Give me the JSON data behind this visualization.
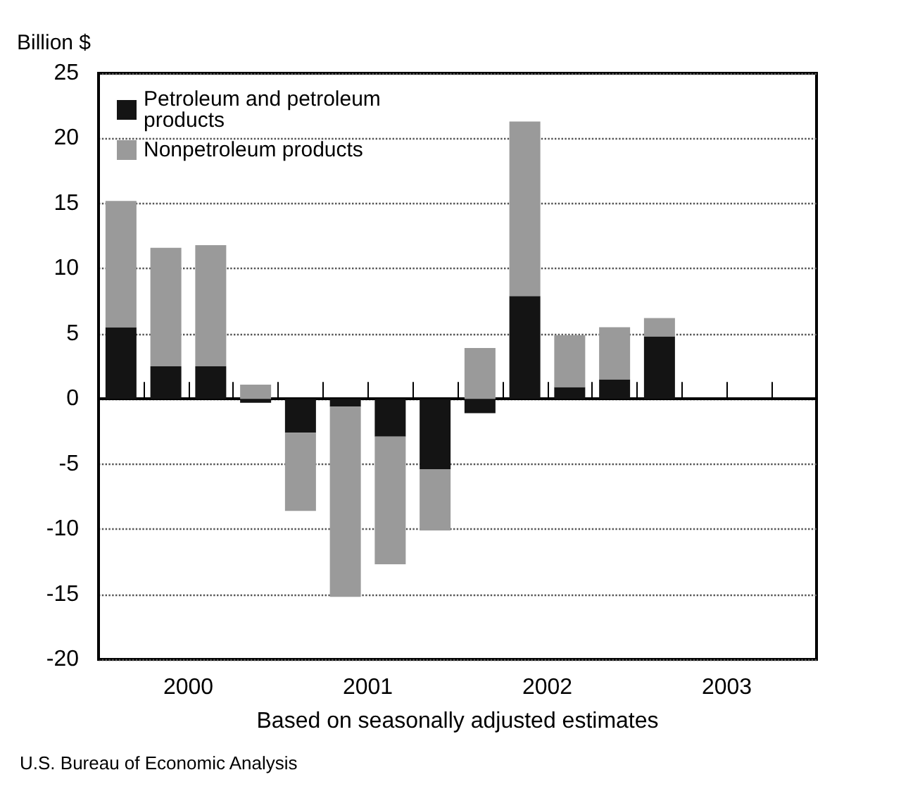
{
  "chart_data": {
    "type": "bar",
    "stacked": true,
    "ylabel": "Billion $",
    "xlabel": "Based on seasonally adjusted estimates",
    "annotations": [
      "U.S. Bureau of Economic Analysis"
    ],
    "x": [
      2000.125,
      2000.375,
      2000.625,
      2000.875,
      2001.125,
      2001.375,
      2001.625,
      2001.875,
      2002.125,
      2002.375,
      2002.625,
      2002.875,
      2003.125
    ],
    "series": [
      {
        "name": "Petroleum and petroleum products",
        "color": "#141414",
        "values": [
          5.5,
          2.5,
          2.5,
          -0.3,
          -2.6,
          -0.6,
          -2.9,
          -5.4,
          -1.1,
          7.9,
          0.9,
          1.5,
          4.8
        ]
      },
      {
        "name": "Nonpetroleum products",
        "color": "#9a9a9a",
        "values": [
          9.7,
          9.1,
          9.3,
          1.1,
          -6.0,
          -14.6,
          -9.8,
          -4.7,
          3.9,
          13.4,
          4.0,
          4.0,
          1.4
        ]
      }
    ],
    "xlim": [
      2000,
      2004
    ],
    "xticks": [
      {
        "value": 2000.25,
        "label": null
      },
      {
        "value": 2000.5,
        "label": "2000"
      },
      {
        "value": 2000.75,
        "label": null
      },
      {
        "value": 2001,
        "label": null
      },
      {
        "value": 2001.25,
        "label": null
      },
      {
        "value": 2001.5,
        "label": "2001"
      },
      {
        "value": 2001.75,
        "label": null
      },
      {
        "value": 2002,
        "label": null
      },
      {
        "value": 2002.25,
        "label": null
      },
      {
        "value": 2002.5,
        "label": "2002"
      },
      {
        "value": 2002.75,
        "label": null
      },
      {
        "value": 2003,
        "label": null
      },
      {
        "value": 2003.25,
        "label": null
      },
      {
        "value": 2003.5,
        "label": "2003"
      },
      {
        "value": 2003.75,
        "label": null
      }
    ],
    "ylim": [
      -20,
      25
    ],
    "yticks": [
      -20,
      -15,
      -10,
      -5,
      0,
      5,
      10,
      15,
      20,
      25
    ],
    "grid": "y",
    "legend": "top left"
  }
}
